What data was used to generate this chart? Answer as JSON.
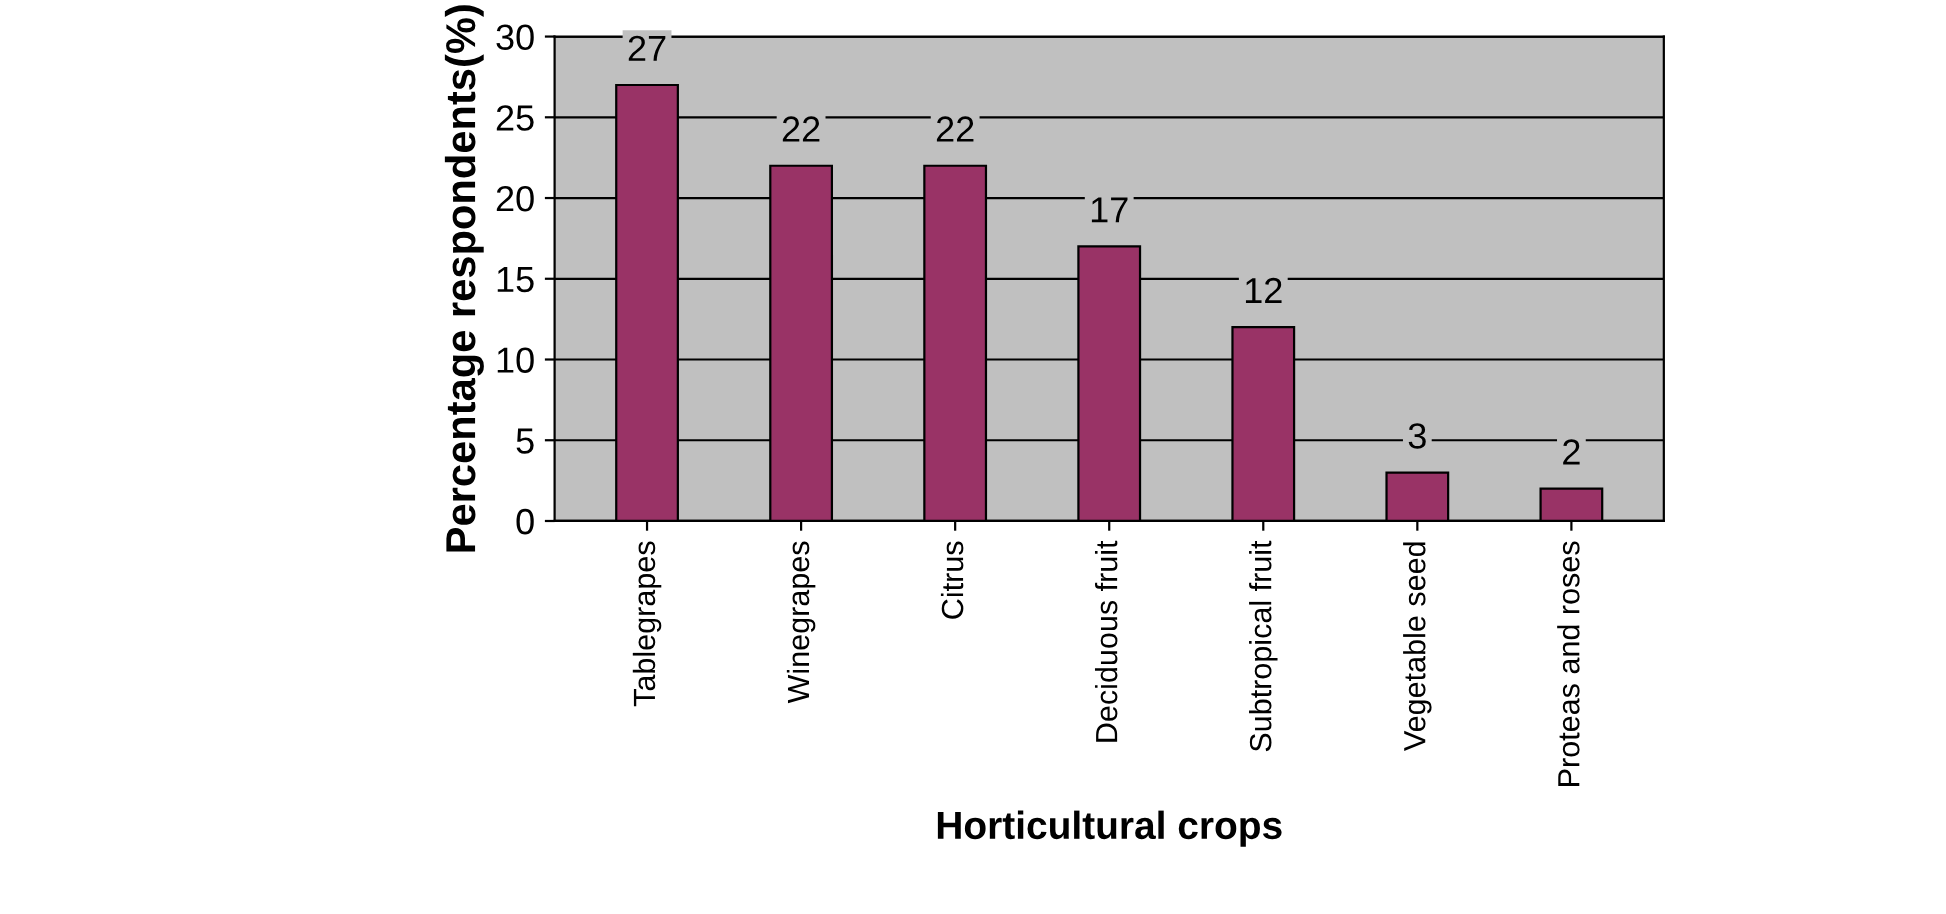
{
  "chart_data": {
    "type": "bar",
    "categories": [
      "Tablegrapes",
      "Winegrapes",
      "Citrus",
      "Deciduous fruit",
      "Subtropical fruit",
      "Vegetable seed",
      "Proteas and roses"
    ],
    "values": [
      27,
      22,
      22,
      17,
      12,
      3,
      2
    ],
    "color": "#993366",
    "xlabel": "Horticultural crops",
    "ylabel": "Percentage respondents(%)",
    "ylim": [
      0,
      30
    ],
    "yticks": [
      0,
      5,
      10,
      15,
      20,
      25,
      30
    ],
    "grid": "y",
    "data_labels": true
  }
}
